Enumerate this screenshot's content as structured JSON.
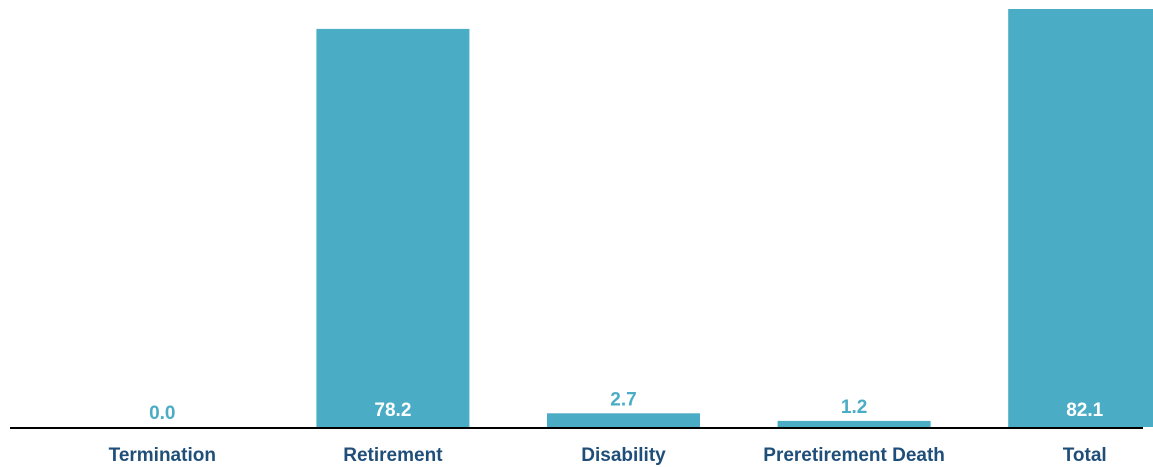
{
  "chart_data": {
    "type": "bar",
    "title": "",
    "xlabel": "",
    "ylabel": "",
    "categories": [
      "Termination",
      "Retirement",
      "Disability",
      "Preretirement Death",
      "Total"
    ],
    "values": [
      0.0,
      78.2,
      2.7,
      1.2,
      82.1
    ],
    "value_labels": [
      "0.0",
      "78.2",
      "2.7",
      "1.2",
      "82.1"
    ],
    "ylim": [
      0,
      82.1
    ],
    "grid": false,
    "legend": "none",
    "colors": {
      "bar": "#4BACC6",
      "label_inside": "#FFFFFF",
      "label_outside": "#4BACC6",
      "category_label": "#1F4E79",
      "axis": "#000000"
    }
  }
}
